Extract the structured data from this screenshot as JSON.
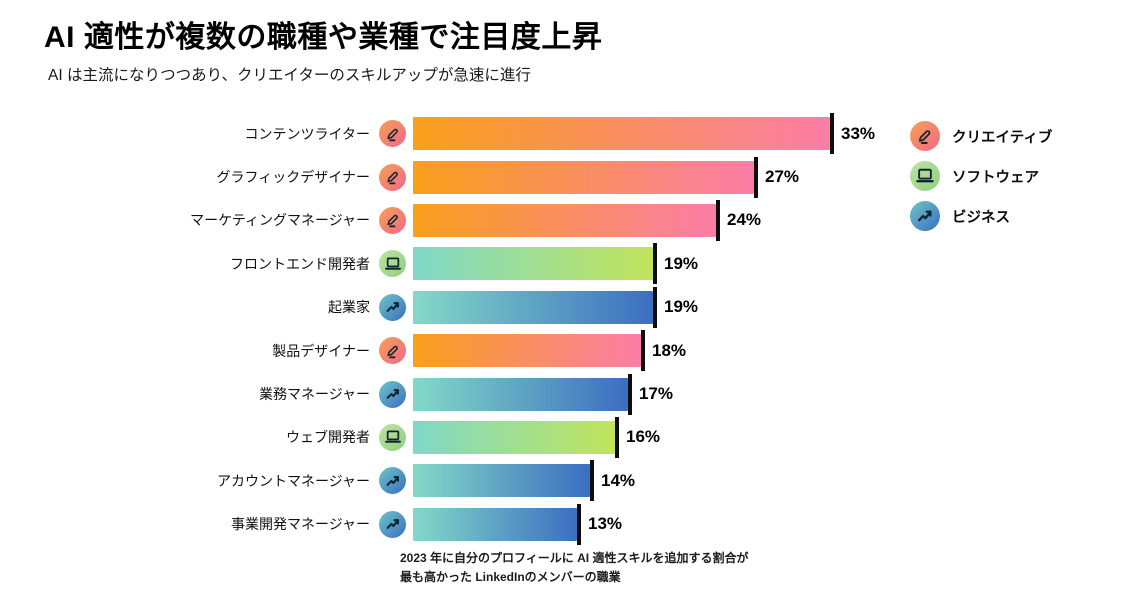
{
  "header": {
    "title": "AI 適性が複数の職種や業種で注目度上昇",
    "subtitle": "AI は主流になりつつあり、クリエイターのスキルアップが急速に進行"
  },
  "legend": [
    {
      "id": "creative",
      "label": "クリエイティブ",
      "icon": "pencil-icon"
    },
    {
      "id": "software",
      "label": "ソフトウェア",
      "icon": "laptop-icon"
    },
    {
      "id": "business",
      "label": "ビジネス",
      "icon": "trend-up-icon"
    }
  ],
  "chart_data": {
    "type": "bar",
    "orientation": "horizontal",
    "title": "AI 適性が複数の職種や業種で注目度上昇",
    "categories": [
      "コンテンツライター",
      "グラフィックデザイナー",
      "マーケティングマネージャー",
      "フロントエンド開発者",
      "起業家",
      "製品デザイナー",
      "業務マネージャー",
      "ウェブ開発者",
      "アカウントマネージャー",
      "事業開発マネージャー"
    ],
    "values": [
      33,
      27,
      24,
      19,
      19,
      18,
      17,
      16,
      14,
      13
    ],
    "value_labels": [
      "33%",
      "27%",
      "24%",
      "19%",
      "19%",
      "18%",
      "17%",
      "16%",
      "14%",
      "13%"
    ],
    "series_category": [
      "creative",
      "creative",
      "creative",
      "software",
      "business",
      "creative",
      "business",
      "software",
      "business",
      "business"
    ],
    "xlim": [
      0,
      35
    ],
    "grid": false,
    "legend_position": "right"
  },
  "palette": {
    "creative": {
      "bar_start": "#F9A01B",
      "bar_end": "#FA7EA7",
      "icon_start": "#F6A152",
      "icon_end": "#F2678D"
    },
    "software": {
      "bar_start": "#7FD8C8",
      "bar_end": "#C2E45C",
      "icon_start": "#BDE4A6",
      "icon_end": "#8FCF7D"
    },
    "business": {
      "bar_start": "#83D9C8",
      "bar_end": "#3C6EC1",
      "icon_start": "#6EC6C8",
      "icon_end": "#3A6EC1"
    }
  },
  "footnote": {
    "line1": "2023 年に自分のプロフィールに AI 適性スキルを追加する割合が",
    "line2": "最も高かった LinkedInのメンバーの職業"
  }
}
